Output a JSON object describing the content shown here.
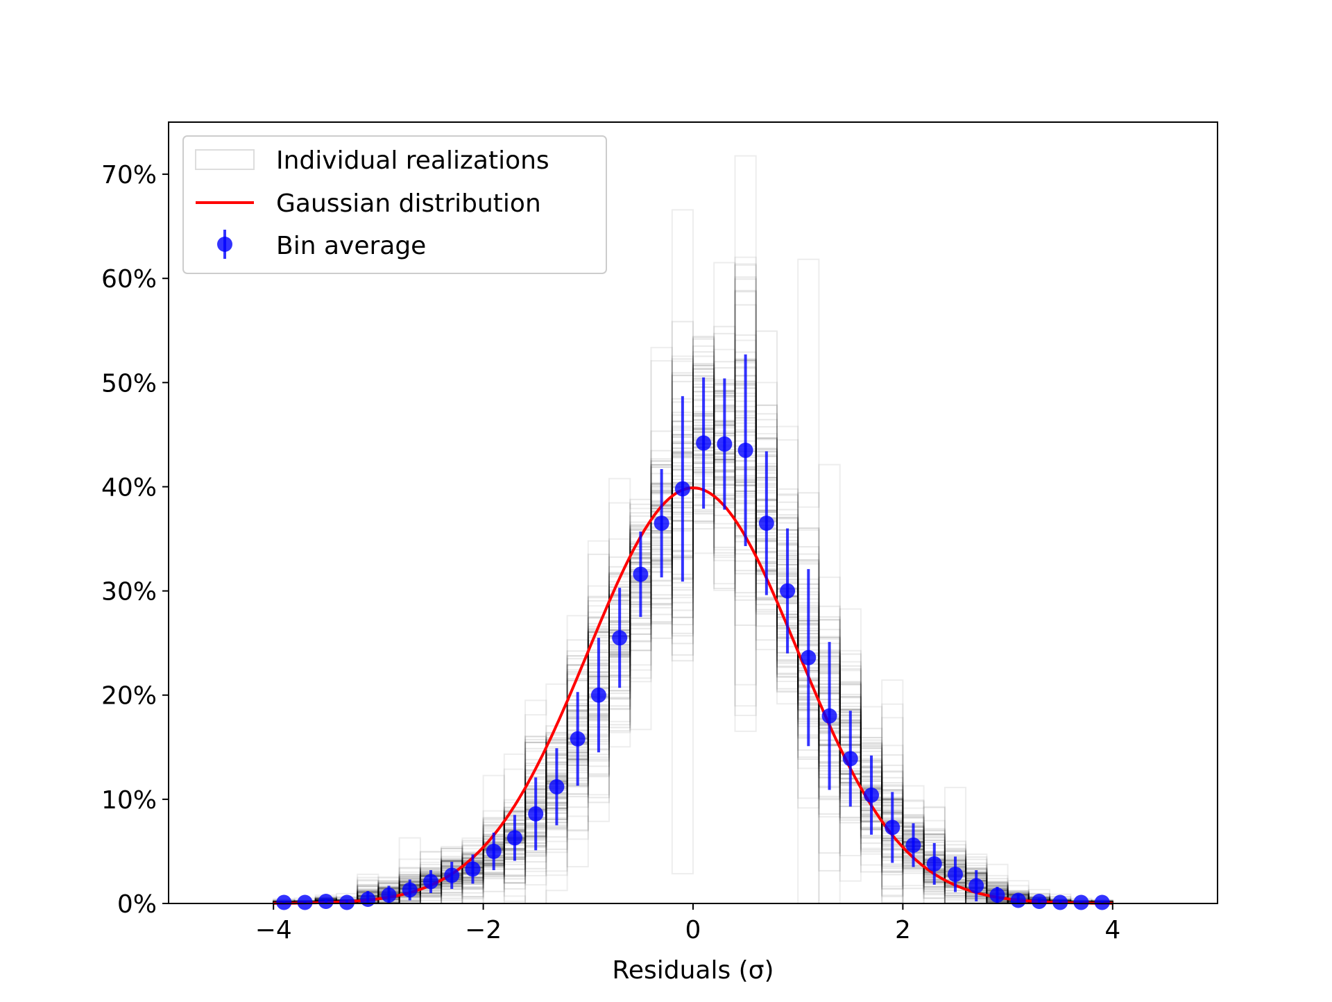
{
  "chart_data": {
    "type": "histogram",
    "title": "",
    "xlabel": "Residuals (σ)",
    "ylabel": "",
    "xlim": [
      -5,
      5
    ],
    "ylim": [
      0,
      75
    ],
    "y_unit": "%",
    "grid": false,
    "legend_position": "top-left",
    "xticks": [
      -4,
      -2,
      0,
      2,
      4
    ],
    "xtick_labels": [
      "−4",
      "−2",
      "0",
      "2",
      "4"
    ],
    "yticks": [
      0,
      10,
      20,
      30,
      40,
      50,
      60,
      70
    ],
    "ytick_labels": [
      "0%",
      "10%",
      "20%",
      "30%",
      "40%",
      "50%",
      "60%",
      "70%"
    ],
    "legend": [
      {
        "label": "Individual realizations",
        "kind": "step-patch"
      },
      {
        "label": "Gaussian distribution",
        "kind": "line"
      },
      {
        "label": "Bin average",
        "kind": "errorbar-marker"
      }
    ],
    "bin_edges": [
      -4.0,
      -3.8,
      -3.6,
      -3.4,
      -3.2,
      -3.0,
      -2.8,
      -2.6,
      -2.4,
      -2.2,
      -2.0,
      -1.8,
      -1.6,
      -1.4,
      -1.2,
      -1.0,
      -0.8,
      -0.6,
      -0.4,
      -0.2,
      0.0,
      0.2,
      0.4,
      0.6,
      0.8,
      1.0,
      1.2,
      1.4,
      1.6,
      1.8,
      2.0,
      2.2,
      2.4,
      2.6,
      2.8,
      3.0,
      3.2,
      3.4,
      3.6,
      3.8,
      4.0
    ],
    "series": [
      {
        "name": "Bin average",
        "x": [
          -3.9,
          -3.7,
          -3.5,
          -3.3,
          -3.1,
          -2.9,
          -2.7,
          -2.5,
          -2.3,
          -2.1,
          -1.9,
          -1.7,
          -1.5,
          -1.3,
          -1.1,
          -0.9,
          -0.7,
          -0.5,
          -0.3,
          -0.1,
          0.1,
          0.3,
          0.5,
          0.7,
          0.9,
          1.1,
          1.3,
          1.5,
          1.7,
          1.9,
          2.1,
          2.3,
          2.5,
          2.7,
          2.9,
          3.1,
          3.3,
          3.5,
          3.7,
          3.9
        ],
        "y": [
          0.1,
          0.1,
          0.2,
          0.1,
          0.4,
          0.8,
          1.3,
          2.1,
          2.7,
          3.3,
          5.0,
          6.3,
          8.6,
          11.2,
          15.8,
          20.0,
          25.5,
          31.6,
          36.5,
          39.8,
          44.2,
          44.1,
          43.5,
          36.5,
          30.0,
          23.6,
          18.0,
          13.9,
          10.4,
          7.3,
          5.6,
          3.8,
          2.8,
          1.7,
          0.8,
          0.3,
          0.2,
          0.1,
          0.1,
          0.1
        ],
        "yerr": [
          0.1,
          0.1,
          0.2,
          0.2,
          0.8,
          0.9,
          1.0,
          1.1,
          1.3,
          1.4,
          1.8,
          2.2,
          3.5,
          3.7,
          4.5,
          5.5,
          4.8,
          4.1,
          5.2,
          8.9,
          6.3,
          6.3,
          9.2,
          6.9,
          6.0,
          8.5,
          7.1,
          4.6,
          3.8,
          3.4,
          2.1,
          2.0,
          1.7,
          1.5,
          0.8,
          0.6,
          0.3,
          0.2,
          0.1,
          0.1
        ]
      },
      {
        "name": "Gaussian distribution",
        "function": "normal_pdf",
        "mean": 0,
        "std": 1,
        "x_range": [
          -4,
          4
        ]
      }
    ]
  }
}
